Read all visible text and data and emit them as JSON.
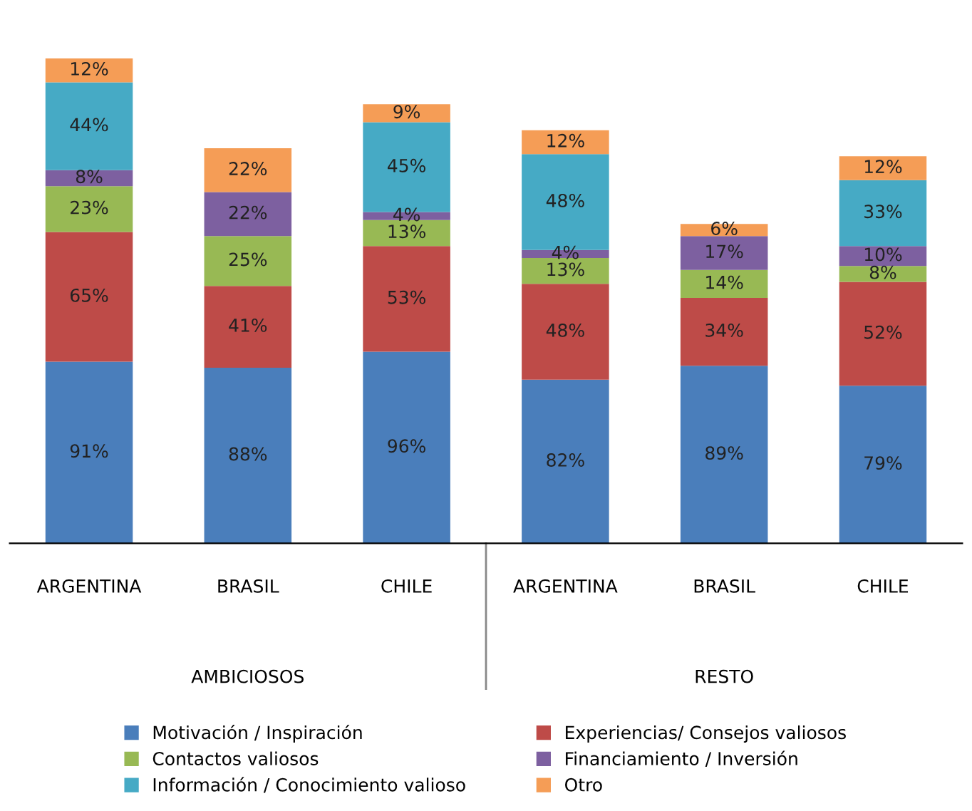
{
  "chart_data": {
    "type": "bar",
    "stacked": true,
    "categories": [
      "ARGENTINA",
      "BRASIL",
      "CHILE",
      "ARGENTINA",
      "BRASIL",
      "CHILE"
    ],
    "annotations": [
      "AMBICIOSOS",
      "RESTO"
    ],
    "series": [
      {
        "name": "Motivación / Inspiración",
        "color": "#4a7ebb",
        "values": [
          91,
          88,
          96,
          82,
          89,
          79
        ],
        "value_labels": [
          "91%",
          "88%",
          "96%",
          "82%",
          "89%",
          "79%"
        ]
      },
      {
        "name": "Experiencias/ Consejos valiosos",
        "color": "#be4b48",
        "values": [
          65,
          41,
          53,
          48,
          34,
          52
        ],
        "value_labels": [
          "65%",
          "41%",
          "53%",
          "48%",
          "34%",
          "52%"
        ]
      },
      {
        "name": "Contactos valiosos",
        "color": "#98b954",
        "values": [
          23,
          25,
          13,
          13,
          14,
          8
        ],
        "value_labels": [
          "23%",
          "25%",
          "13%",
          "13%",
          "14%",
          "8%"
        ]
      },
      {
        "name": "Financiamiento / Inversión",
        "color": "#7d60a0",
        "values": [
          8,
          22,
          4,
          4,
          17,
          10
        ],
        "value_labels": [
          "8%",
          "22%",
          "4%",
          "4%",
          "17%",
          "10%"
        ]
      },
      {
        "name": "Información / Conocimiento valioso",
        "color": "#46aac5",
        "values": [
          44,
          null,
          45,
          48,
          null,
          33
        ],
        "value_labels": [
          "44%",
          null,
          "45%",
          "48%",
          null,
          "33%"
        ]
      },
      {
        "name": "Otro",
        "color": "#f59d56",
        "values": [
          12,
          22,
          9,
          12,
          6,
          12
        ],
        "value_labels": [
          "12%",
          "22%",
          "9%",
          "12%",
          "6%",
          "12%"
        ]
      }
    ],
    "legend": "bottom"
  }
}
